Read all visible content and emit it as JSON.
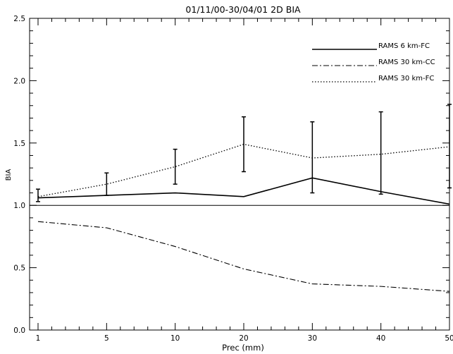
{
  "chart_data": {
    "type": "line",
    "title": "01/11/00-30/04/01  2D  BIA",
    "xlabel": "Prec (mm)",
    "ylabel": "BIA",
    "categories": [
      "1",
      "5",
      "10",
      "20",
      "30",
      "40",
      "50"
    ],
    "ylim": [
      0.0,
      2.5
    ],
    "yticks": [
      "0.0",
      "0.5",
      "1.0",
      "1.5",
      "2.0",
      "2.5"
    ],
    "reference_line": 1.0,
    "grid": false,
    "legend_position": "top-right",
    "series": [
      {
        "name": "RAMS 6 km-FC",
        "style": "solid",
        "values": [
          1.06,
          1.08,
          1.1,
          1.07,
          1.22,
          1.11,
          1.01
        ]
      },
      {
        "name": "RAMS 30 km-CC",
        "style": "dashdot",
        "values": [
          0.87,
          0.82,
          0.67,
          0.49,
          0.37,
          0.35,
          0.31
        ]
      },
      {
        "name": "RAMS 30 km-FC",
        "style": "dotted",
        "values": [
          1.07,
          1.17,
          1.31,
          1.49,
          1.38,
          1.41,
          1.47
        ],
        "error_bars": [
          [
            1.03,
            1.13
          ],
          [
            1.08,
            1.26
          ],
          [
            1.17,
            1.45
          ],
          [
            1.27,
            1.71
          ],
          [
            1.1,
            1.67
          ],
          [
            1.09,
            1.75
          ],
          [
            1.14,
            1.81
          ]
        ]
      }
    ]
  }
}
